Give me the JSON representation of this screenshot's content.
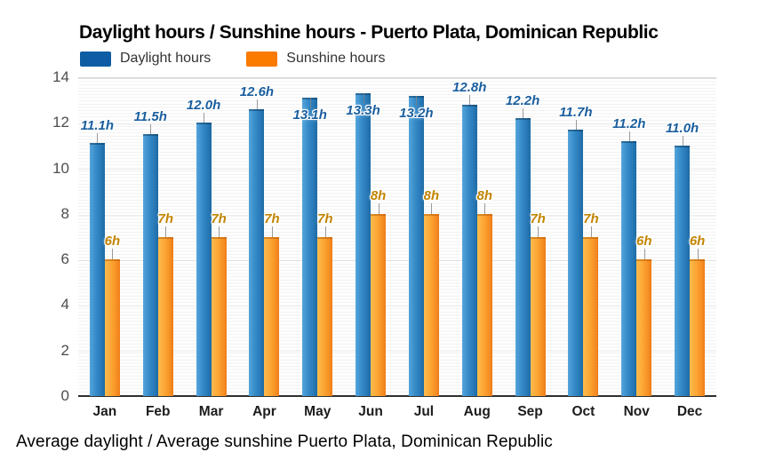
{
  "title": "Daylight hours / Sunshine hours - Puerto Plata, Dominican Republic",
  "footer": "Average daylight / Average sunshine Puerto Plata, Dominican Republic",
  "legend": {
    "daylight_label": "Daylight hours",
    "sunshine_label": "Sunshine hours"
  },
  "colors": {
    "legend_daylight": "#0e5da4",
    "legend_sunshine": "#fb7a00",
    "bar_daylight": "#3388c6",
    "bar_sunshine": "#fba431",
    "label_daylight": "#1a5e9e",
    "label_sunshine": "#c28400"
  },
  "chart_data": {
    "type": "bar",
    "title": "Daylight hours / Sunshine hours - Puerto Plata, Dominican Republic",
    "xlabel": "",
    "ylabel": "",
    "ylim": [
      0,
      14
    ],
    "yticks": [
      0,
      2,
      4,
      6,
      8,
      10,
      12,
      14
    ],
    "grid": true,
    "legend_position": "top",
    "categories": [
      "Jan",
      "Feb",
      "Mar",
      "Apr",
      "May",
      "Jun",
      "Jul",
      "Aug",
      "Sep",
      "Oct",
      "Nov",
      "Dec"
    ],
    "series": [
      {
        "name": "Daylight hours",
        "values": [
          11.1,
          11.5,
          12.0,
          12.6,
          13.1,
          13.3,
          13.2,
          12.8,
          12.2,
          11.7,
          11.2,
          11.0
        ],
        "labels": [
          "11.1h",
          "11.5h",
          "12.0h",
          "12.6h",
          "13.1h",
          "13.3h",
          "13.2h",
          "12.8h",
          "12.2h",
          "11.7h",
          "11.2h",
          "11.0h"
        ]
      },
      {
        "name": "Sunshine hours",
        "values": [
          6,
          7,
          7,
          7,
          7,
          8,
          8,
          8,
          7,
          7,
          6,
          6
        ],
        "labels": [
          "6h",
          "7h",
          "7h",
          "7h",
          "7h",
          "8h",
          "8h",
          "8h",
          "7h",
          "7h",
          "6h",
          "6h"
        ]
      }
    ]
  }
}
